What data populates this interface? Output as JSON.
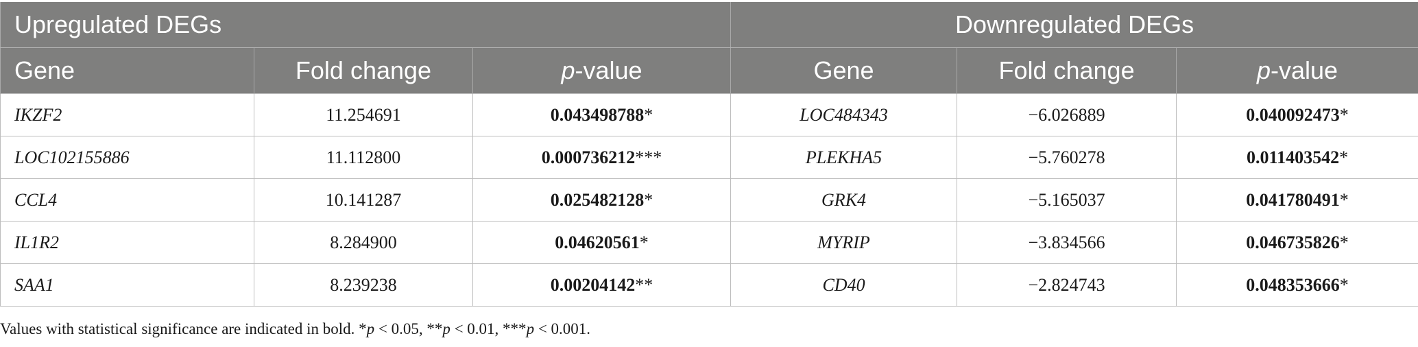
{
  "table": {
    "group_headers": {
      "up": "Upregulated DEGs",
      "down": "Downregulated DEGs"
    },
    "column_headers": {
      "gene": "Gene",
      "fold_change": "Fold change",
      "p_italic": "p",
      "p_rest": "-value"
    },
    "rows": [
      {
        "up_gene": "IKZF2",
        "up_fc": "11.254691",
        "up_p": "0.043498788",
        "up_stars": "*",
        "down_gene": "LOC484343",
        "down_fc": "−6.026889",
        "down_p": "0.040092473",
        "down_stars": "*"
      },
      {
        "up_gene": "LOC102155886",
        "up_fc": "11.112800",
        "up_p": "0.000736212",
        "up_stars": "***",
        "down_gene": "PLEKHA5",
        "down_fc": "−5.760278",
        "down_p": "0.011403542",
        "down_stars": "*"
      },
      {
        "up_gene": "CCL4",
        "up_fc": "10.141287",
        "up_p": "0.025482128",
        "up_stars": "*",
        "down_gene": "GRK4",
        "down_fc": "−5.165037",
        "down_p": "0.041780491",
        "down_stars": "*"
      },
      {
        "up_gene": "IL1R2",
        "up_fc": "8.284900",
        "up_p": "0.04620561",
        "up_stars": "*",
        "down_gene": "MYRIP",
        "down_fc": "−3.834566",
        "down_p": "0.046735826",
        "down_stars": "*"
      },
      {
        "up_gene": "SAA1",
        "up_fc": "8.239238",
        "up_p": "0.00204142",
        "up_stars": "**",
        "down_gene": "CD40",
        "down_fc": "−2.824743",
        "down_p": "0.048353666",
        "down_stars": "*"
      }
    ]
  },
  "footnote": {
    "lead": "Values with statistical significance are indicated in bold. *",
    "p1": "p",
    "t1": " < 0.05, **",
    "p2": "p",
    "t2": " < 0.01, ***",
    "p3": "p",
    "t3": " < 0.001."
  },
  "colors": {
    "header_bg": "#7f7f7e",
    "header_text": "#ffffff",
    "border": "#bdbdbd"
  }
}
